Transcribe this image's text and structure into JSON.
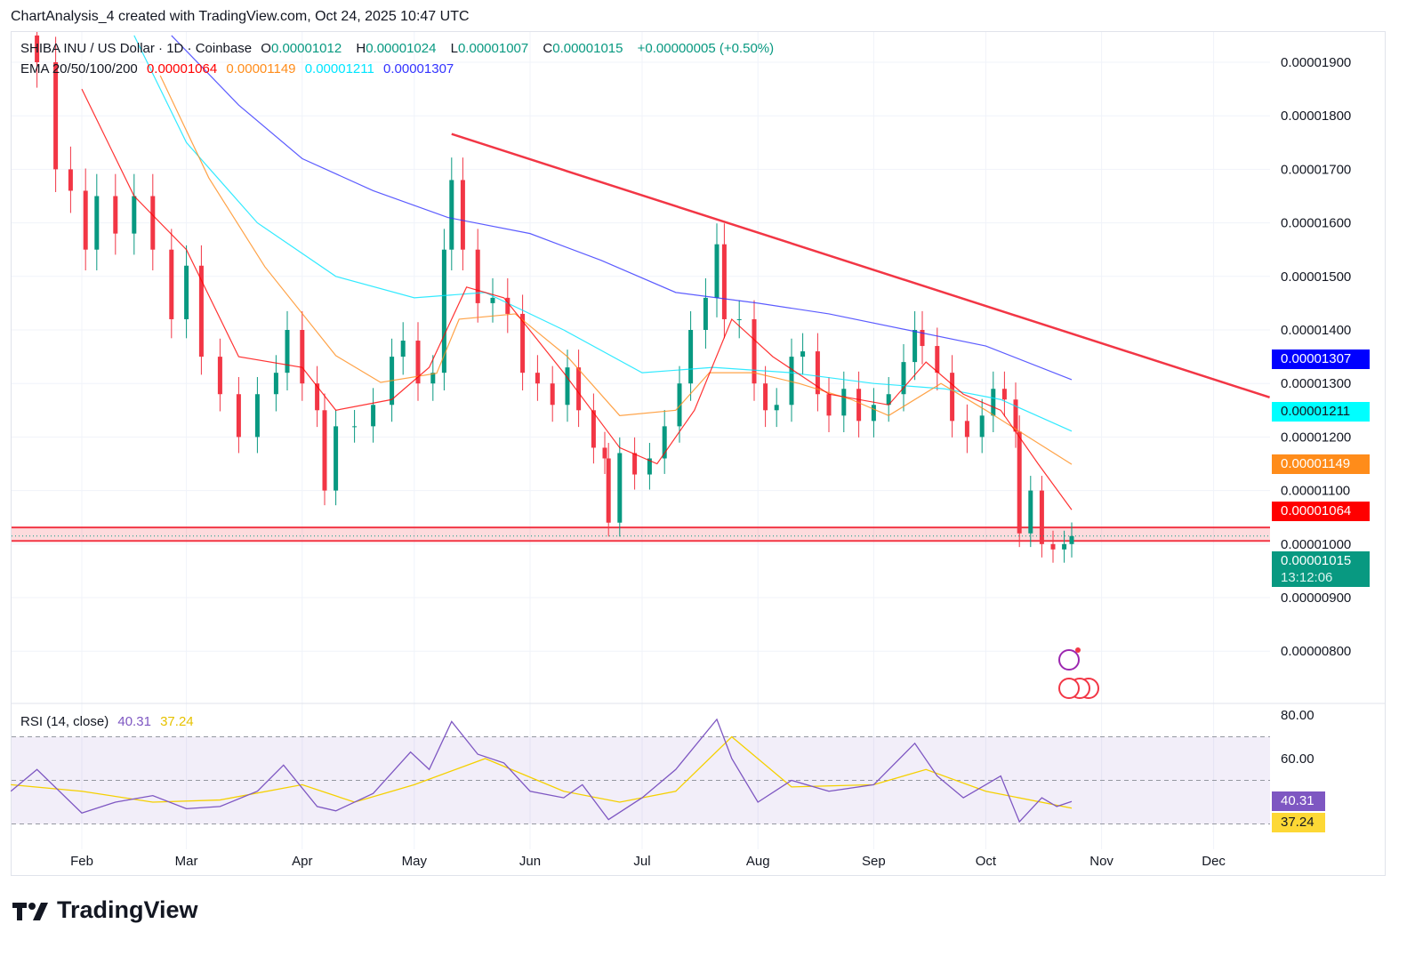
{
  "caption": "ChartAnalysis_4 created with TradingView.com, Oct 24, 2025 10:47 UTC",
  "legend": {
    "symbol": "SHIBA INU / US Dollar · 1D · Coinbase",
    "open_label": "O",
    "open": "0.00001012",
    "high_label": "H",
    "high": "0.00001024",
    "low_label": "L",
    "low": "0.00001007",
    "close_label": "C",
    "close": "0.00001015",
    "change": "+0.00000005 (+0.50%)",
    "ema_label": "EMA 20/50/100/200",
    "ema20": "0.00001064",
    "ema50": "0.00001149",
    "ema100": "0.00001211",
    "ema200": "0.00001307",
    "rsi_label": "RSI (14, close)",
    "rsi": "40.31",
    "rsi_ma": "37.24"
  },
  "price_labels": {
    "ema200": "0.00001307",
    "ema100": "0.00001211",
    "ema50": "0.00001149",
    "ema20": "0.00001064",
    "last": "0.00001015",
    "countdown": "13:12:06",
    "rsi": "40.31",
    "rsi_ma": "37.24"
  },
  "colors": {
    "up": "#089981",
    "down": "#f23645",
    "ema20": "#ff0000",
    "ema50": "#ff8c1a",
    "ema100": "#00e5ff",
    "ema200": "#3333ff",
    "rsi": "#7e57c2",
    "rsi_ma": "#f5d000",
    "trendline": "#f23645",
    "last": "#089981"
  },
  "brand": "TradingView",
  "chart_data": [
    {
      "type": "candlestick",
      "price_ticks": [
        "0.00001900",
        "0.00001800",
        "0.00001700",
        "0.00001600",
        "0.00001500",
        "0.00001400",
        "0.00001300",
        "0.00001200",
        "0.00001100",
        "0.00001000",
        "0.00000900",
        "0.00000800"
      ],
      "x_ticks": [
        [
          "Feb",
          "2025-02-01"
        ],
        [
          "Mar",
          "2025-03-01"
        ],
        [
          "Apr",
          "2025-04-01"
        ],
        [
          "May",
          "2025-05-01"
        ],
        [
          "Jun",
          "2025-06-01"
        ],
        [
          "Jul",
          "2025-07-01"
        ],
        [
          "Aug",
          "2025-08-01"
        ],
        [
          "Sep",
          "2025-09-01"
        ],
        [
          "Oct",
          "2025-10-01"
        ],
        [
          "Nov",
          "2025-11-01"
        ],
        [
          "Dec",
          "2025-12-01"
        ]
      ],
      "ylim": [
        7.7e-06,
        1.96e-05
      ],
      "grid": true,
      "closes": [
        [
          "2025-01-13",
          19.5
        ],
        [
          "2025-01-20",
          19.0
        ],
        [
          "2025-01-25",
          17.0
        ],
        [
          "2025-01-29",
          16.6
        ],
        [
          "2025-02-02",
          15.5
        ],
        [
          "2025-02-05",
          16.5
        ],
        [
          "2025-02-10",
          15.8
        ],
        [
          "2025-02-15",
          16.5
        ],
        [
          "2025-02-20",
          15.5
        ],
        [
          "2025-02-25",
          14.2
        ],
        [
          "2025-03-01",
          15.2
        ],
        [
          "2025-03-05",
          13.5
        ],
        [
          "2025-03-10",
          12.8
        ],
        [
          "2025-03-15",
          12.0
        ],
        [
          "2025-03-20",
          12.8
        ],
        [
          "2025-03-25",
          13.2
        ],
        [
          "2025-03-28",
          14.0
        ],
        [
          "2025-04-01",
          13.0
        ],
        [
          "2025-04-05",
          12.5
        ],
        [
          "2025-04-07",
          11.0
        ],
        [
          "2025-04-10",
          12.2
        ],
        [
          "2025-04-15",
          12.2
        ],
        [
          "2025-04-20",
          12.6
        ],
        [
          "2025-04-25",
          13.5
        ],
        [
          "2025-04-28",
          13.8
        ],
        [
          "2025-05-02",
          13.0
        ],
        [
          "2025-05-06",
          13.2
        ],
        [
          "2025-05-09",
          15.5
        ],
        [
          "2025-05-11",
          16.8
        ],
        [
          "2025-05-14",
          15.5
        ],
        [
          "2025-05-18",
          14.5
        ],
        [
          "2025-05-22",
          14.6
        ],
        [
          "2025-05-26",
          14.3
        ],
        [
          "2025-05-30",
          13.2
        ],
        [
          "2025-06-03",
          13.0
        ],
        [
          "2025-06-07",
          12.6
        ],
        [
          "2025-06-11",
          13.3
        ],
        [
          "2025-06-14",
          12.5
        ],
        [
          "2025-06-18",
          11.8
        ],
        [
          "2025-06-21",
          11.6
        ],
        [
          "2025-06-22",
          10.4
        ],
        [
          "2025-06-25",
          11.7
        ],
        [
          "2025-06-29",
          11.3
        ],
        [
          "2025-07-03",
          11.6
        ],
        [
          "2025-07-07",
          12.2
        ],
        [
          "2025-07-11",
          13.0
        ],
        [
          "2025-07-14",
          14.0
        ],
        [
          "2025-07-18",
          14.6
        ],
        [
          "2025-07-21",
          15.6
        ],
        [
          "2025-07-23",
          14.2
        ],
        [
          "2025-07-27",
          14.2
        ],
        [
          "2025-07-31",
          13.0
        ],
        [
          "2025-08-03",
          12.5
        ],
        [
          "2025-08-06",
          12.6
        ],
        [
          "2025-08-10",
          13.5
        ],
        [
          "2025-08-13",
          13.6
        ],
        [
          "2025-08-17",
          12.8
        ],
        [
          "2025-08-20",
          12.4
        ],
        [
          "2025-08-24",
          12.9
        ],
        [
          "2025-08-28",
          12.3
        ],
        [
          "2025-09-01",
          12.6
        ],
        [
          "2025-09-05",
          12.8
        ],
        [
          "2025-09-09",
          13.4
        ],
        [
          "2025-09-12",
          14.0
        ],
        [
          "2025-09-14",
          13.7
        ],
        [
          "2025-09-18",
          13.2
        ],
        [
          "2025-09-22",
          12.3
        ],
        [
          "2025-09-26",
          12.0
        ],
        [
          "2025-09-30",
          12.4
        ],
        [
          "2025-10-03",
          12.9
        ],
        [
          "2025-10-06",
          12.7
        ],
        [
          "2025-10-09",
          12.1
        ],
        [
          "2025-10-10",
          10.2
        ],
        [
          "2025-10-13",
          11.0
        ],
        [
          "2025-10-16",
          10.0
        ],
        [
          "2025-10-19",
          9.9
        ],
        [
          "2025-10-22",
          10.0
        ],
        [
          "2025-10-24",
          10.15
        ]
      ],
      "price_unit": 1e-06,
      "ema20": [
        [
          "2025-02-01",
          18.5
        ],
        [
          "2025-02-15",
          16.5
        ],
        [
          "2025-03-01",
          15.5
        ],
        [
          "2025-03-15",
          13.5
        ],
        [
          "2025-04-01",
          13.3
        ],
        [
          "2025-04-10",
          12.5
        ],
        [
          "2025-04-25",
          12.7
        ],
        [
          "2025-05-05",
          13.3
        ],
        [
          "2025-05-15",
          14.8
        ],
        [
          "2025-05-25",
          14.6
        ],
        [
          "2025-06-10",
          13.2
        ],
        [
          "2025-06-25",
          11.8
        ],
        [
          "2025-07-05",
          11.5
        ],
        [
          "2025-07-15",
          12.5
        ],
        [
          "2025-07-25",
          14.2
        ],
        [
          "2025-08-05",
          13.5
        ],
        [
          "2025-08-20",
          12.8
        ],
        [
          "2025-09-05",
          12.6
        ],
        [
          "2025-09-15",
          13.4
        ],
        [
          "2025-09-25",
          12.8
        ],
        [
          "2025-10-05",
          12.5
        ],
        [
          "2025-10-15",
          11.5
        ],
        [
          "2025-10-24",
          10.64
        ]
      ],
      "ema50": [
        [
          "2025-02-22",
          18.75
        ],
        [
          "2025-03-07",
          16.84
        ],
        [
          "2025-03-22",
          15.18
        ],
        [
          "2025-04-10",
          13.52
        ],
        [
          "2025-04-22",
          13.02
        ],
        [
          "2025-05-07",
          13.19
        ],
        [
          "2025-05-13",
          14.2
        ],
        [
          "2025-05-28",
          14.3
        ],
        [
          "2025-06-11",
          13.5
        ],
        [
          "2025-06-25",
          12.4
        ],
        [
          "2025-07-10",
          12.5
        ],
        [
          "2025-07-19",
          13.2
        ],
        [
          "2025-07-31",
          13.2
        ],
        [
          "2025-08-12",
          13.0
        ],
        [
          "2025-08-26",
          12.7
        ],
        [
          "2025-09-05",
          12.4
        ],
        [
          "2025-09-19",
          13.0
        ],
        [
          "2025-10-01",
          12.5
        ],
        [
          "2025-10-24",
          11.49
        ]
      ],
      "ema100": [
        [
          "2025-02-15",
          19.5
        ],
        [
          "2025-03-01",
          17.5
        ],
        [
          "2025-03-20",
          16.0
        ],
        [
          "2025-04-10",
          15.0
        ],
        [
          "2025-05-01",
          14.6
        ],
        [
          "2025-05-20",
          14.7
        ],
        [
          "2025-06-10",
          14.0
        ],
        [
          "2025-07-01",
          13.2
        ],
        [
          "2025-07-20",
          13.3
        ],
        [
          "2025-08-10",
          13.2
        ],
        [
          "2025-09-01",
          13.0
        ],
        [
          "2025-09-20",
          12.9
        ],
        [
          "2025-10-05",
          12.7
        ],
        [
          "2025-10-24",
          12.11
        ]
      ],
      "ema200": [
        [
          "2025-02-25",
          19.5
        ],
        [
          "2025-03-15",
          18.2
        ],
        [
          "2025-04-01",
          17.2
        ],
        [
          "2025-04-20",
          16.6
        ],
        [
          "2025-05-10",
          16.1
        ],
        [
          "2025-06-01",
          15.8
        ],
        [
          "2025-06-20",
          15.3
        ],
        [
          "2025-07-10",
          14.7
        ],
        [
          "2025-08-01",
          14.5
        ],
        [
          "2025-08-20",
          14.3
        ],
        [
          "2025-09-10",
          14.0
        ],
        [
          "2025-10-01",
          13.7
        ],
        [
          "2025-10-24",
          13.07
        ]
      ],
      "trendline": [
        [
          "2025-05-11",
          17.66
        ],
        [
          "2025-12-16",
          12.74
        ]
      ],
      "support_zone": [
        10.06,
        10.31
      ]
    },
    {
      "type": "line",
      "title": "RSI (14, close)",
      "y_ticks": [
        "80.00",
        "60.00"
      ],
      "bands": [
        70,
        50,
        30
      ],
      "ylim": [
        28,
        82
      ],
      "rsi": [
        [
          "2025-01-13",
          45
        ],
        [
          "2025-01-20",
          55
        ],
        [
          "2025-02-01",
          35
        ],
        [
          "2025-02-10",
          40
        ],
        [
          "2025-02-20",
          43
        ],
        [
          "2025-03-01",
          37
        ],
        [
          "2025-03-10",
          38
        ],
        [
          "2025-03-20",
          45
        ],
        [
          "2025-03-27",
          57
        ],
        [
          "2025-04-05",
          38
        ],
        [
          "2025-04-10",
          36
        ],
        [
          "2025-04-20",
          44
        ],
        [
          "2025-04-30",
          63
        ],
        [
          "2025-05-05",
          55
        ],
        [
          "2025-05-11",
          77
        ],
        [
          "2025-05-18",
          62
        ],
        [
          "2025-05-25",
          58
        ],
        [
          "2025-06-01",
          45
        ],
        [
          "2025-06-10",
          42
        ],
        [
          "2025-06-15",
          48
        ],
        [
          "2025-06-22",
          32
        ],
        [
          "2025-07-01",
          42
        ],
        [
          "2025-07-10",
          55
        ],
        [
          "2025-07-21",
          78
        ],
        [
          "2025-07-25",
          60
        ],
        [
          "2025-08-01",
          40
        ],
        [
          "2025-08-10",
          50
        ],
        [
          "2025-08-20",
          45
        ],
        [
          "2025-09-01",
          48
        ],
        [
          "2025-09-12",
          67
        ],
        [
          "2025-09-18",
          52
        ],
        [
          "2025-09-25",
          42
        ],
        [
          "2025-10-05",
          52
        ],
        [
          "2025-10-10",
          31
        ],
        [
          "2025-10-16",
          42
        ],
        [
          "2025-10-20",
          38
        ],
        [
          "2025-10-24",
          40.31
        ]
      ],
      "rsi_ma": [
        [
          "2025-01-13",
          48
        ],
        [
          "2025-02-01",
          45
        ],
        [
          "2025-02-20",
          40
        ],
        [
          "2025-03-10",
          41
        ],
        [
          "2025-04-01",
          48
        ],
        [
          "2025-04-15",
          40
        ],
        [
          "2025-05-01",
          48
        ],
        [
          "2025-05-20",
          60
        ],
        [
          "2025-06-10",
          45
        ],
        [
          "2025-06-25",
          40
        ],
        [
          "2025-07-10",
          45
        ],
        [
          "2025-07-25",
          70
        ],
        [
          "2025-08-10",
          47
        ],
        [
          "2025-09-01",
          48
        ],
        [
          "2025-09-15",
          55
        ],
        [
          "2025-10-01",
          45
        ],
        [
          "2025-10-24",
          37.24
        ]
      ]
    }
  ]
}
